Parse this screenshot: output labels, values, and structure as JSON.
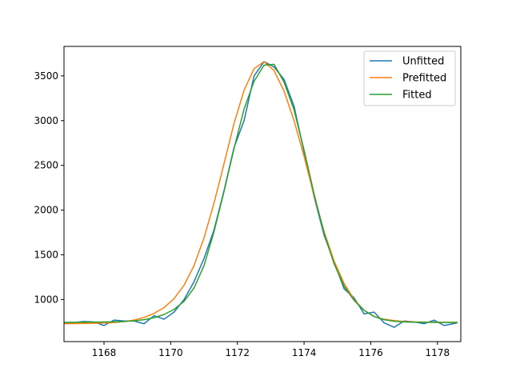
{
  "chart_data": {
    "type": "line",
    "title": "",
    "xlabel": "",
    "ylabel": "",
    "xlim": [
      1166.8,
      1178.7
    ],
    "ylim": [
      530,
      3830
    ],
    "x_ticks": [
      1168,
      1170,
      1172,
      1174,
      1176,
      1178
    ],
    "y_ticks": [
      1000,
      1500,
      2000,
      2500,
      3000,
      3500
    ],
    "x_tick_labels": [
      "1168",
      "1170",
      "1172",
      "1174",
      "1176",
      "1178"
    ],
    "y_tick_labels": [
      "1000",
      "1500",
      "2000",
      "2500",
      "3000",
      "3500"
    ],
    "grid": false,
    "legend_position": "top-right",
    "series": [
      {
        "name": "Unfitted",
        "color": "#1f77b4",
        "x": [
          1166.8,
          1167.1,
          1167.4,
          1167.7,
          1168.0,
          1168.3,
          1168.6,
          1168.9,
          1169.2,
          1169.5,
          1169.8,
          1170.1,
          1170.4,
          1170.7,
          1171.0,
          1171.3,
          1171.6,
          1171.9,
          1172.2,
          1172.5,
          1172.8,
          1173.1,
          1173.4,
          1173.7,
          1174.0,
          1174.3,
          1174.6,
          1174.9,
          1175.2,
          1175.5,
          1175.8,
          1176.1,
          1176.4,
          1176.7,
          1177.0,
          1177.3,
          1177.6,
          1177.9,
          1178.2,
          1178.6
        ],
        "values": [
          740,
          745,
          755,
          750,
          710,
          770,
          760,
          760,
          730,
          820,
          780,
          860,
          1000,
          1200,
          1460,
          1780,
          2220,
          2700,
          3000,
          3500,
          3660,
          3600,
          3460,
          3160,
          2650,
          2150,
          1720,
          1420,
          1120,
          1020,
          840,
          860,
          740,
          690,
          760,
          750,
          730,
          770,
          710,
          740
        ]
      },
      {
        "name": "Prefitted",
        "color": "#ff7f0e",
        "x": [
          1166.8,
          1167.1,
          1167.4,
          1167.7,
          1168.0,
          1168.3,
          1168.6,
          1168.9,
          1169.2,
          1169.5,
          1169.8,
          1170.1,
          1170.4,
          1170.7,
          1171.0,
          1171.3,
          1171.6,
          1171.9,
          1172.2,
          1172.5,
          1172.8,
          1173.1,
          1173.4,
          1173.7,
          1174.0,
          1174.3,
          1174.6,
          1174.9,
          1175.2,
          1175.5,
          1175.8,
          1176.1,
          1176.4,
          1176.7,
          1177.0,
          1177.3,
          1177.6,
          1177.9,
          1178.2,
          1178.6
        ],
        "values": [
          730,
          731,
          733,
          735,
          738,
          744,
          753,
          770,
          800,
          845,
          910,
          1010,
          1160,
          1380,
          1690,
          2080,
          2520,
          2970,
          3340,
          3580,
          3660,
          3560,
          3330,
          3000,
          2600,
          2160,
          1760,
          1430,
          1180,
          1000,
          880,
          810,
          780,
          765,
          755,
          750,
          748,
          747,
          746,
          745
        ]
      },
      {
        "name": "Fitted",
        "color": "#2ca02c",
        "x": [
          1166.8,
          1167.1,
          1167.4,
          1167.7,
          1168.0,
          1168.3,
          1168.6,
          1168.9,
          1169.2,
          1169.5,
          1169.8,
          1170.1,
          1170.4,
          1170.7,
          1171.0,
          1171.3,
          1171.6,
          1171.9,
          1172.2,
          1172.5,
          1172.8,
          1173.1,
          1173.4,
          1173.7,
          1174.0,
          1174.3,
          1174.6,
          1174.9,
          1175.2,
          1175.5,
          1175.8,
          1176.1,
          1176.4,
          1176.7,
          1177.0,
          1177.3,
          1177.6,
          1177.9,
          1178.2,
          1178.6
        ],
        "values": [
          745,
          746,
          747,
          748,
          749,
          751,
          755,
          762,
          775,
          797,
          833,
          890,
          980,
          1130,
          1380,
          1760,
          2210,
          2690,
          3130,
          3440,
          3620,
          3630,
          3430,
          3120,
          2670,
          2180,
          1740,
          1400,
          1150,
          990,
          880,
          810,
          775,
          758,
          750,
          747,
          746,
          745,
          745,
          745
        ]
      }
    ]
  }
}
